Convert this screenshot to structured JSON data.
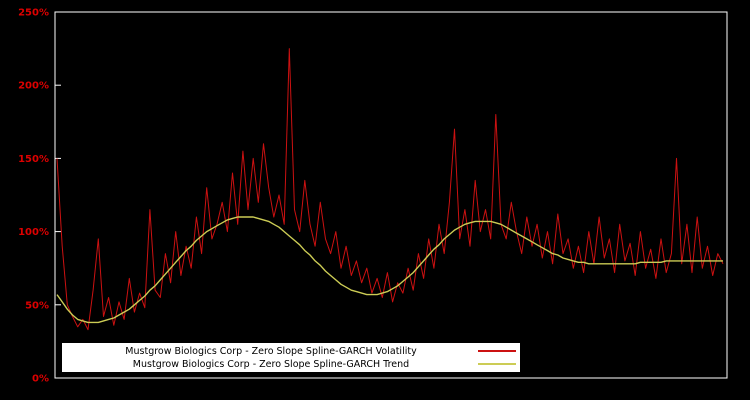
{
  "chart": {
    "background": "#000000",
    "frame_color": "#ffffff",
    "axis_label_color": "#dd0000",
    "legend": {
      "background": "#ffffff",
      "text_color": "#000000"
    }
  },
  "chart_data": {
    "type": "line",
    "title": "",
    "xlabel": "",
    "ylabel": "",
    "ylim": [
      0,
      250
    ],
    "grid": false,
    "legend_position": "bottom-inside",
    "y_ticks": [
      0,
      50,
      100,
      150,
      200,
      250
    ],
    "y_tick_labels": [
      "0%",
      "50%",
      "100%",
      "150%",
      "200%",
      "250%"
    ],
    "series": [
      {
        "name": "Mustgrow Biologics Corp - Zero Slope Spline-GARCH Volatility",
        "color": "#cc1111",
        "values": [
          150,
          90,
          50,
          42,
          35,
          40,
          33,
          60,
          95,
          42,
          55,
          36,
          52,
          40,
          68,
          45,
          58,
          48,
          115,
          60,
          55,
          85,
          65,
          100,
          70,
          90,
          75,
          110,
          85,
          130,
          95,
          105,
          120,
          100,
          140,
          105,
          155,
          115,
          150,
          120,
          160,
          130,
          110,
          125,
          105,
          225,
          115,
          100,
          135,
          105,
          90,
          120,
          95,
          85,
          100,
          75,
          90,
          70,
          80,
          65,
          75,
          58,
          68,
          55,
          72,
          52,
          65,
          58,
          75,
          60,
          85,
          68,
          95,
          75,
          105,
          85,
          120,
          170,
          95,
          115,
          90,
          135,
          100,
          115,
          95,
          180,
          105,
          95,
          120,
          100,
          85,
          110,
          90,
          105,
          82,
          100,
          78,
          112,
          85,
          95,
          75,
          90,
          72,
          100,
          78,
          110,
          82,
          95,
          72,
          105,
          80,
          92,
          70,
          100,
          75,
          88,
          68,
          95,
          72,
          85,
          150,
          78,
          105,
          72,
          110,
          75,
          90,
          70,
          85,
          78
        ]
      },
      {
        "name": "Mustgrow Biologics Corp - Zero Slope Spline-GARCH Trend",
        "color": "#cccc55",
        "values": [
          57,
          52,
          47,
          43,
          40,
          39,
          38,
          38,
          38,
          39,
          40,
          41,
          43,
          45,
          47,
          50,
          53,
          56,
          60,
          63,
          67,
          71,
          75,
          79,
          83,
          87,
          90,
          94,
          97,
          100,
          102,
          104,
          106,
          108,
          109,
          110,
          110,
          110,
          110,
          109,
          108,
          107,
          105,
          103,
          100,
          97,
          94,
          91,
          87,
          84,
          80,
          77,
          73,
          70,
          67,
          64,
          62,
          60,
          59,
          58,
          57,
          57,
          57,
          58,
          59,
          61,
          63,
          66,
          69,
          72,
          76,
          80,
          84,
          88,
          91,
          95,
          98,
          101,
          103,
          105,
          106,
          107,
          107,
          107,
          107,
          106,
          105,
          103,
          101,
          99,
          97,
          95,
          93,
          91,
          89,
          87,
          85,
          84,
          82,
          81,
          80,
          79,
          79,
          78,
          78,
          78,
          78,
          78,
          78,
          78,
          78,
          78,
          78,
          79,
          79,
          79,
          79,
          79,
          80,
          80,
          80,
          80,
          80,
          80,
          80,
          80,
          80,
          80,
          80,
          80
        ]
      }
    ]
  }
}
